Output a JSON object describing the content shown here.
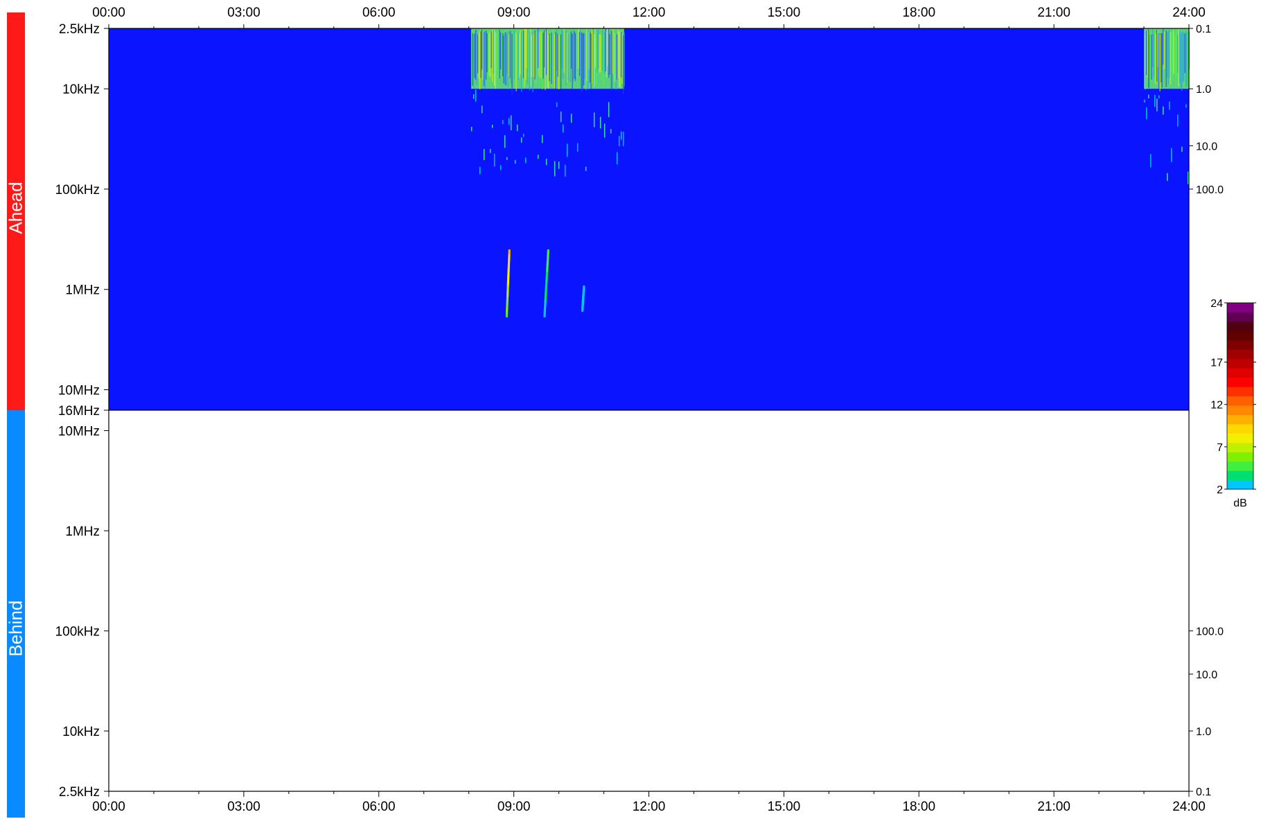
{
  "panels": {
    "ahead": {
      "label": "Ahead",
      "color": "#ff1a1a",
      "background": "#0a14ff"
    },
    "behind": {
      "label": "Behind",
      "color": "#0a8aff",
      "background": "#ffffff"
    }
  },
  "chart_data": [
    {
      "type": "heatmap",
      "panel": "Ahead",
      "x_tick_labels": [
        "00:00",
        "03:00",
        "06:00",
        "09:00",
        "12:00",
        "15:00",
        "18:00",
        "21:00",
        "24:00"
      ],
      "x_range_hours": [
        0,
        24
      ],
      "y_scale": "log",
      "y_range_hz": [
        2500,
        16000000
      ],
      "y_tick_labels": [
        {
          "label": "2.5kHz",
          "hz": 2500
        },
        {
          "label": "10kHz",
          "hz": 10000
        },
        {
          "label": "100kHz",
          "hz": 100000
        },
        {
          "label": "1MHz",
          "hz": 1000000
        },
        {
          "label": "10MHz",
          "hz": 10000000
        },
        {
          "label": "16MHz",
          "hz": 16000000
        }
      ],
      "right_tick_labels": [
        {
          "label": "0.1",
          "hz": 2500
        },
        {
          "label": "1.0",
          "hz": 10000
        },
        {
          "label": "10.0",
          "hz": 37000
        },
        {
          "label": "100.0",
          "hz": 100000
        }
      ],
      "features": [
        {
          "kind": "noise-block",
          "t_start_h": 8.05,
          "t_end_h": 11.45,
          "f_low_hz": 2500,
          "f_high_hz": 10000,
          "intensity_db": 6
        },
        {
          "kind": "sparse-noise",
          "t_start_h": 8.05,
          "t_end_h": 11.45,
          "f_low_hz": 10000,
          "f_high_hz": 120000,
          "intensity_db": 3
        },
        {
          "kind": "noise-block",
          "t_start_h": 23.0,
          "t_end_h": 24.0,
          "f_low_hz": 2500,
          "f_high_hz": 10000,
          "intensity_db": 6
        },
        {
          "kind": "sparse-noise",
          "t_start_h": 23.0,
          "t_end_h": 24.0,
          "f_low_hz": 10000,
          "f_high_hz": 150000,
          "intensity_db": 3
        },
        {
          "kind": "burst",
          "t_start_h": 8.82,
          "t_end_h": 8.92,
          "f_low_hz": 380000,
          "f_high_hz": 1700000,
          "intensity_db": 10
        },
        {
          "kind": "burst",
          "t_start_h": 9.66,
          "t_end_h": 9.8,
          "f_low_hz": 380000,
          "f_high_hz": 1700000,
          "intensity_db": 5
        },
        {
          "kind": "burst",
          "t_start_h": 10.5,
          "t_end_h": 10.56,
          "f_low_hz": 900000,
          "f_high_hz": 1500000,
          "intensity_db": 3
        }
      ]
    },
    {
      "type": "heatmap",
      "panel": "Behind",
      "x_tick_labels": [
        "00:00",
        "03:00",
        "06:00",
        "09:00",
        "12:00",
        "15:00",
        "18:00",
        "21:00",
        "24:00"
      ],
      "x_range_hours": [
        0,
        24
      ],
      "y_scale": "log",
      "y_range_hz": [
        2500,
        16000000
      ],
      "y_tick_labels": [
        {
          "label": "10MHz",
          "hz": 10000000
        },
        {
          "label": "1MHz",
          "hz": 1000000
        },
        {
          "label": "100kHz",
          "hz": 100000
        },
        {
          "label": "10kHz",
          "hz": 10000
        },
        {
          "label": "2.5kHz",
          "hz": 2500
        }
      ],
      "right_tick_labels": [
        {
          "label": "100.0",
          "hz": 100000
        },
        {
          "label": "10.0",
          "hz": 37000
        },
        {
          "label": "1.0",
          "hz": 10000
        },
        {
          "label": "0.1",
          "hz": 2500
        }
      ],
      "features": []
    }
  ],
  "colorbar": {
    "unit": "dB",
    "ticks": [
      2,
      7,
      12,
      17,
      24
    ],
    "range": [
      2,
      24
    ],
    "colors": [
      "#00c8ff",
      "#00e070",
      "#40f040",
      "#80f000",
      "#c0f000",
      "#f0f000",
      "#ffd800",
      "#ffb000",
      "#ff8800",
      "#ff6000",
      "#ff3000",
      "#ff0000",
      "#e00000",
      "#c00000",
      "#a00000",
      "#800000",
      "#600000",
      "#500010",
      "#600050",
      "#800080"
    ]
  }
}
